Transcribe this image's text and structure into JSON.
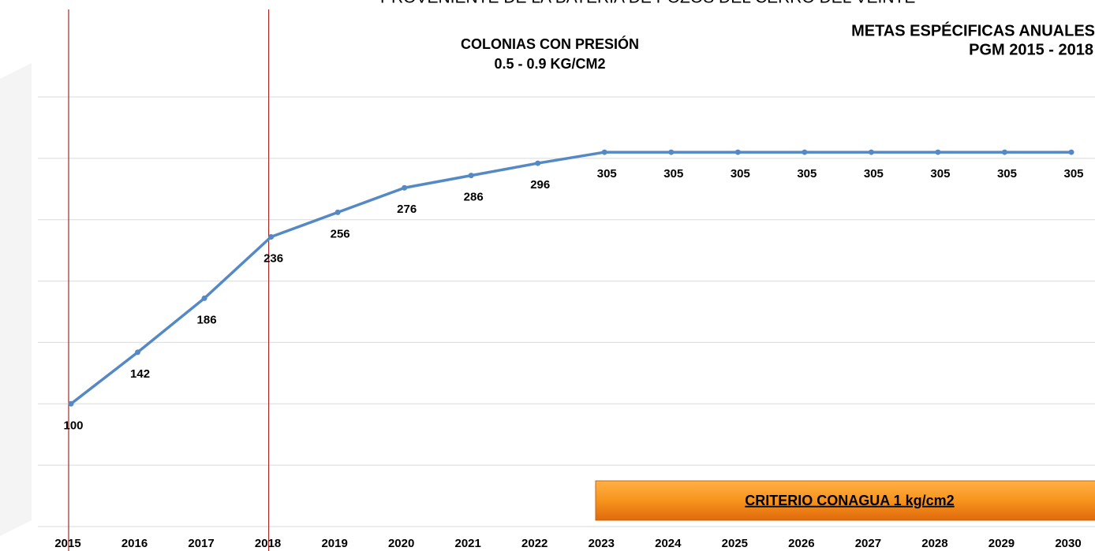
{
  "chart_data": {
    "type": "line",
    "header": "PROVENIENTE DE LA BATERIA DE POZOS DEL CERRO DEL VEINTE",
    "title": [
      "COLONIAS CON PRESIÓN",
      "0.5 - 0.9 KG/CM2"
    ],
    "subtitle": [
      "METAS ESPÉCIFICAS ANUALES",
      "PGM 2015 - 2018"
    ],
    "annotation": "CRITERIO CONAGUA 1 kg/cm2",
    "x": [
      2015,
      2016,
      2017,
      2018,
      2019,
      2020,
      2021,
      2022,
      2023,
      2024,
      2025,
      2026,
      2027,
      2028,
      2029,
      2030
    ],
    "xlim": [
      2015,
      2030
    ],
    "series": [
      {
        "color": "#5589c6",
        "values": [
          100,
          142,
          186,
          236,
          256,
          276,
          286,
          296,
          305,
          305,
          305,
          305,
          305,
          305,
          305,
          305
        ]
      }
    ],
    "vlines": [
      2015,
      2018
    ],
    "vline_color": "#a52a2a",
    "ylim": [
      0,
      350
    ],
    "yticks": [
      0,
      50,
      100,
      150,
      200,
      250,
      300,
      350
    ],
    "grid": true
  }
}
